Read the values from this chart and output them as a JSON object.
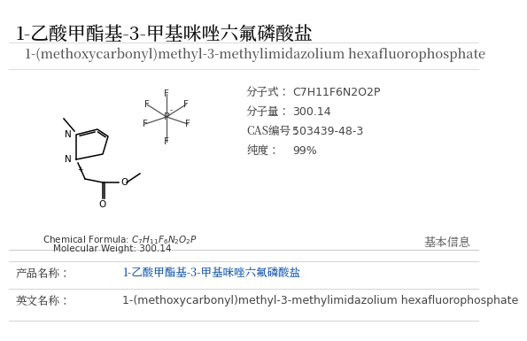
{
  "title_zh": "1-乙酸甲酯基-3-甲基咪唑六氟磷酸盐",
  "title_en": "1-(methoxycarbonyl)methyl-3-methylimidazolium hexafluorophosphate",
  "formula_label": "分子式：",
  "formula_value": "C7H11F6N2O2P",
  "mw_label": "分子量：",
  "mw_value": "300.14",
  "cas_label": "CAS编号：",
  "cas_value": "503439-48-3",
  "purity_label": "纯度：",
  "purity_value": "99%",
  "chem_formula_line": "Chemical Formula: $C_7H_{11}F_6N_2O_2P$",
  "mw_line": "Molecular Weight: 300.14",
  "section_label": "基本信息",
  "product_name_label": "产品名称：",
  "product_name_value": "1-乙酸甲酯基-3-甲基咪唑六氟磷酸盐",
  "english_name_label": "英文名称：",
  "english_name_value": "1-(methoxycarbonyl)methyl-3-methylimidazolium hexafluorophosphate",
  "bg_color": "#ffffff",
  "title_zh_color": "#111111",
  "title_en_color": "#555555",
  "label_color": "#444444",
  "value_color": "#444444",
  "blue_text_color": "#1155aa",
  "line_color": "#cccccc",
  "title_zh_fontsize": 15,
  "title_en_fontsize": 10.5,
  "body_fontsize": 9,
  "small_fontsize": 7.5,
  "struct_label_fontsize": 7.5
}
